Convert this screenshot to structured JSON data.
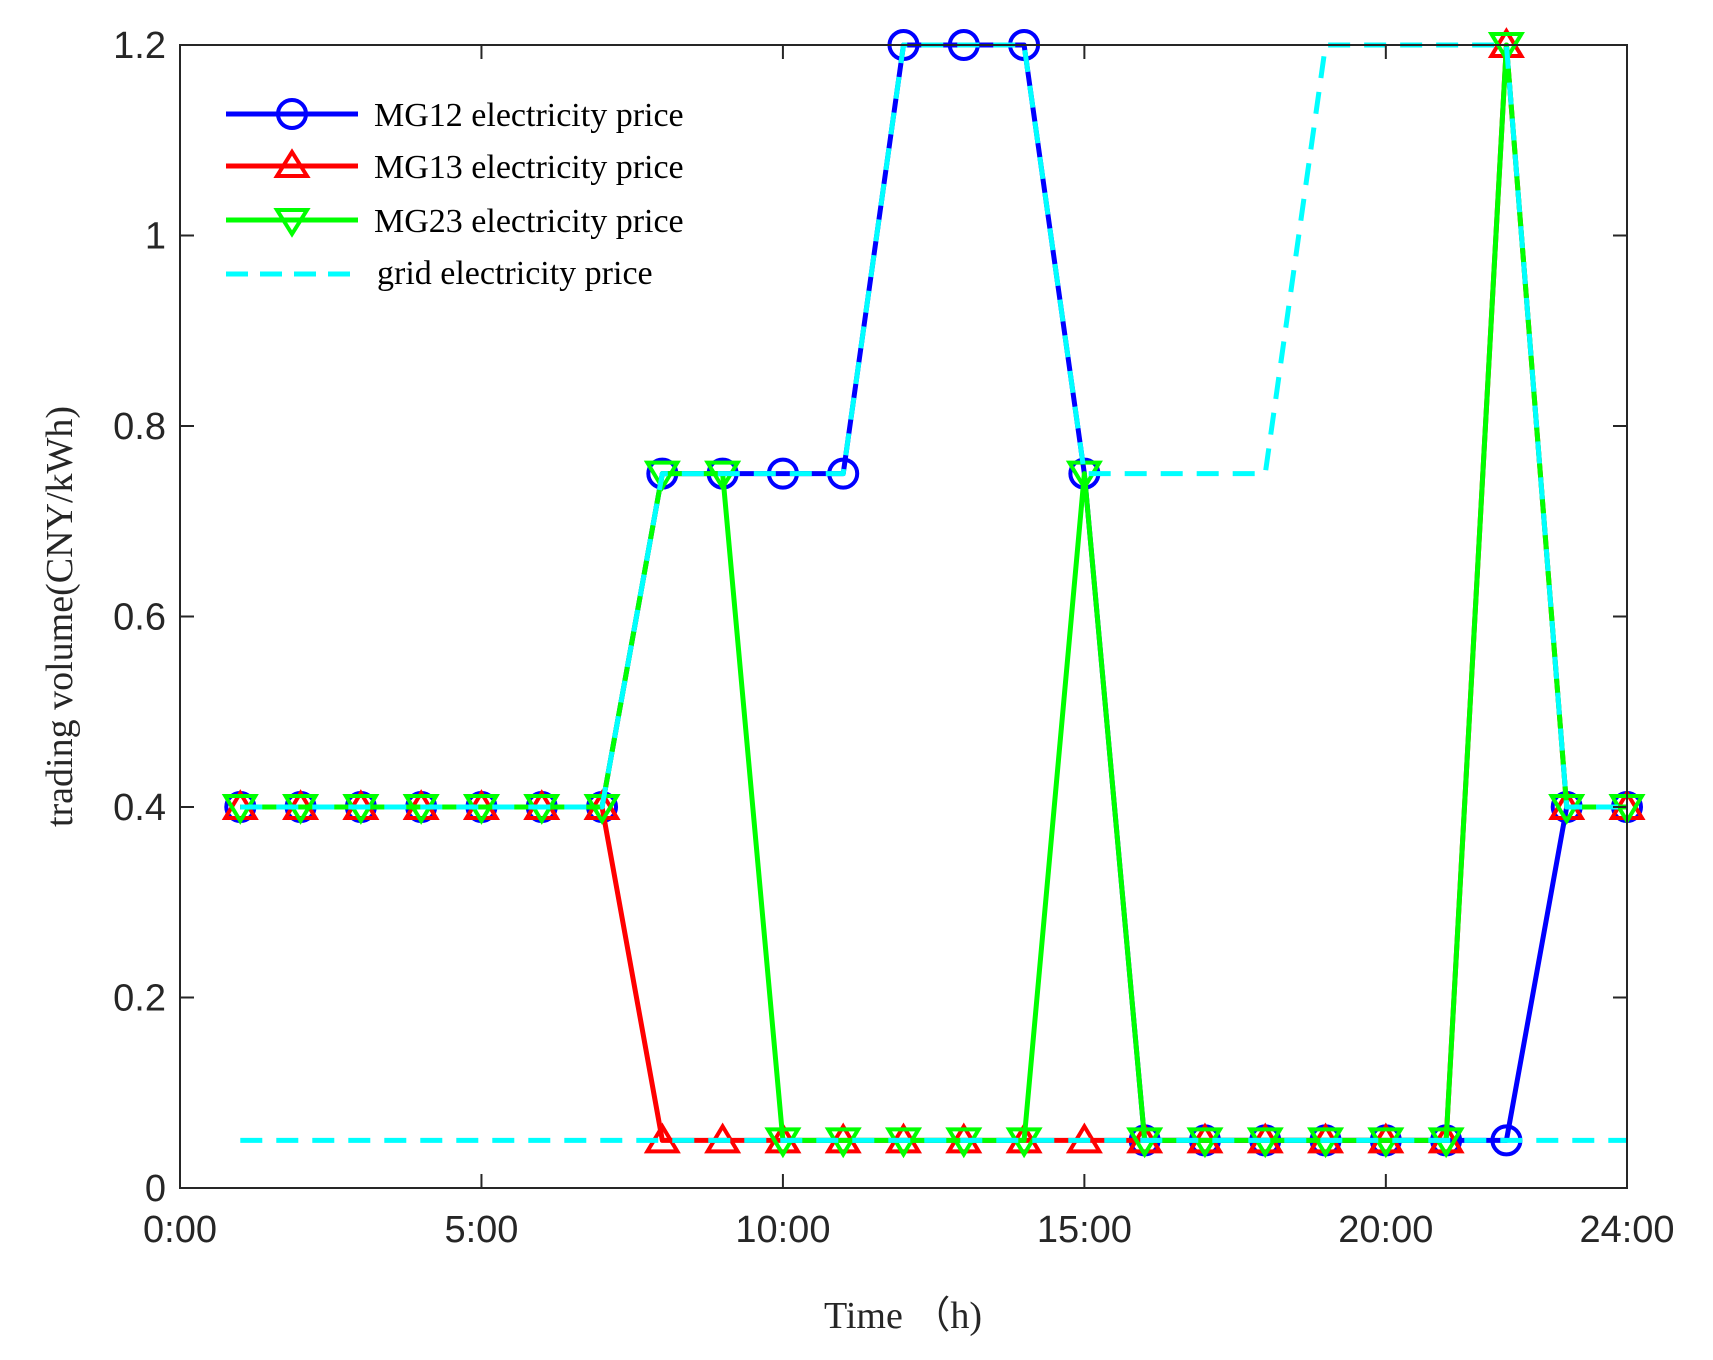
{
  "chart_data": {
    "type": "line",
    "title": "",
    "xlabel": "Time （h)",
    "ylabel": "trading volume(CNY/kWh)",
    "xlim": [
      0,
      24
    ],
    "ylim": [
      0,
      1.2
    ],
    "x_ticks": [
      0,
      5,
      10,
      15,
      20,
      24
    ],
    "x_tick_labels": [
      "0:00",
      "5:00",
      "10:00",
      "15:00",
      "20:00",
      "24:00"
    ],
    "y_ticks": [
      0,
      0.2,
      0.4,
      0.6,
      0.8,
      1.0,
      1.2
    ],
    "y_tick_labels": [
      "0",
      "0.2",
      "0.4",
      "0.6",
      "0.8",
      "1",
      "1.2"
    ],
    "x": [
      1,
      2,
      3,
      4,
      5,
      6,
      7,
      8,
      9,
      10,
      11,
      12,
      13,
      14,
      15,
      16,
      17,
      18,
      19,
      20,
      21,
      22,
      23,
      24
    ],
    "legend_position": "top-left",
    "series": [
      {
        "name": "MG12 electricity price",
        "color": "#0000ff",
        "marker": "circle",
        "values": [
          0.4,
          0.4,
          0.4,
          0.4,
          0.4,
          0.4,
          0.4,
          0.75,
          0.75,
          0.75,
          0.75,
          1.2,
          1.2,
          1.2,
          0.75,
          0.05,
          0.05,
          0.05,
          0.05,
          0.05,
          0.05,
          0.05,
          0.4,
          0.4
        ]
      },
      {
        "name": "MG13 electricity price",
        "color": "#ff0000",
        "marker": "triangle-up",
        "values": [
          0.4,
          0.4,
          0.4,
          0.4,
          0.4,
          0.4,
          0.4,
          0.05,
          0.05,
          0.05,
          0.05,
          0.05,
          0.05,
          0.05,
          0.05,
          0.05,
          0.05,
          0.05,
          0.05,
          0.05,
          0.05,
          1.2,
          0.4,
          0.4
        ]
      },
      {
        "name": "MG23 electricity price",
        "color": "#00ff00",
        "marker": "triangle-down",
        "values": [
          0.4,
          0.4,
          0.4,
          0.4,
          0.4,
          0.4,
          0.4,
          0.75,
          0.75,
          0.05,
          0.05,
          0.05,
          0.05,
          0.05,
          0.75,
          0.05,
          0.05,
          0.05,
          0.05,
          0.05,
          0.05,
          1.2,
          0.4,
          0.4
        ]
      },
      {
        "name": "grid electricity price",
        "color": "#00ffff",
        "marker": "none",
        "dashed": true,
        "segments": [
          {
            "x": [
              1,
              2,
              3,
              4,
              5,
              6,
              7,
              8,
              9,
              10,
              11,
              12,
              13,
              14,
              15,
              16,
              17,
              18,
              19,
              20,
              21,
              22,
              23,
              24
            ],
            "values": [
              0.4,
              0.4,
              0.4,
              0.4,
              0.4,
              0.4,
              0.4,
              0.75,
              0.75,
              0.75,
              0.75,
              1.2,
              1.2,
              1.2,
              0.75,
              0.75,
              0.75,
              0.75,
              1.2,
              1.2,
              1.2,
              1.2,
              0.4,
              0.4
            ]
          },
          {
            "x": [
              1,
              24
            ],
            "values": [
              0.05,
              0.05
            ]
          }
        ]
      }
    ]
  }
}
